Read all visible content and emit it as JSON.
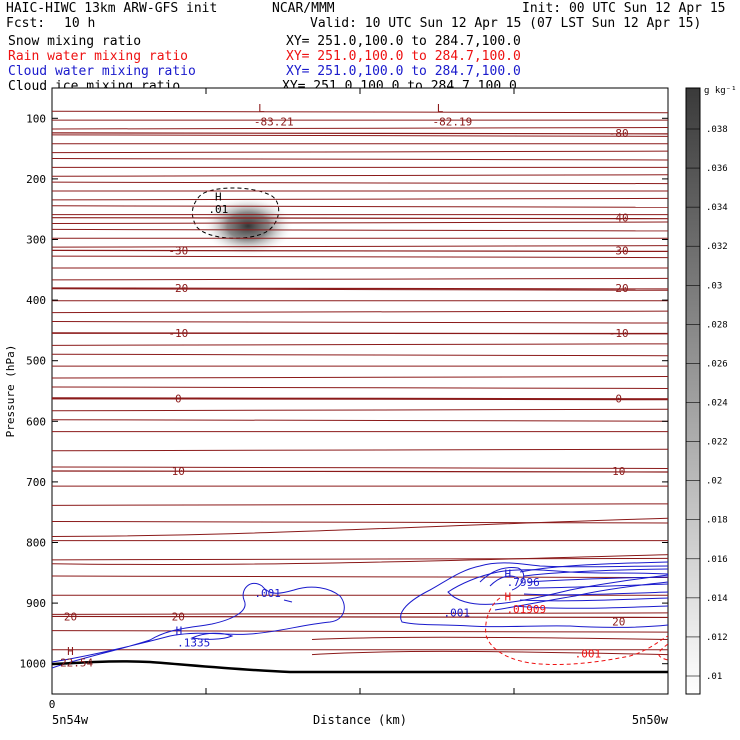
{
  "header": {
    "model": "HAIC-HIWC 13km ARW-GFS init",
    "org": "NCAR/MMM",
    "init": "Init: 00 UTC Sun 12 Apr 15",
    "fcst_label": "Fcst:",
    "fcst_value": "10 h",
    "valid": "Valid: 10 UTC Sun 12 Apr 15 (07 LST Sun 12 Apr 15)"
  },
  "fields": [
    {
      "name": "Snow mixing ratio",
      "xy": "XY= 251.0,100.0 to 284.7,100.0",
      "color": "#000000"
    },
    {
      "name": "Rain water mixing ratio",
      "xy": "XY= 251.0,100.0 to 284.7,100.0",
      "color": "#ee1111"
    },
    {
      "name": "Cloud water mixing ratio",
      "xy": "XY= 251.0,100.0 to 284.7,100.0",
      "color": "#1a1acc"
    },
    {
      "name": "Cloud ice mixing ratio",
      "xy": "XY= 251.0,100.0 to 284.7,100.0",
      "color": "#000000"
    }
  ],
  "chart_data": {
    "type": "contour",
    "xlabel": "Distance (km)",
    "ylabel": "Pressure (hPa)",
    "x_tick_start": "0",
    "x_left_label": "5n54w",
    "x_right_label": "5n50w",
    "y_ticks": [
      100,
      200,
      300,
      400,
      500,
      600,
      700,
      800,
      900,
      1000
    ],
    "ylim": [
      1050,
      50
    ],
    "temperature_contours": {
      "color": "#8b1a1a",
      "levels": [
        {
          "t": -80,
          "p": 124
        },
        {
          "t": -40,
          "p": 264
        },
        {
          "t": -30,
          "p": 318
        },
        {
          "t": -20,
          "p": 380
        },
        {
          "t": -10,
          "p": 454
        },
        {
          "t": 0,
          "p": 562
        },
        {
          "t": 10,
          "p": 682
        },
        {
          "t": 20,
          "p": 922
        }
      ],
      "labels_left": [
        {
          "text": "-30",
          "p": 318
        },
        {
          "text": "-20",
          "p": 380
        },
        {
          "text": "-10",
          "p": 454
        },
        {
          "text": "0",
          "p": 562
        },
        {
          "text": "10",
          "p": 682
        },
        {
          "text": "20",
          "p": 922
        }
      ],
      "labels_right": [
        {
          "text": "-80",
          "p": 124
        },
        {
          "text": "-40",
          "p": 264
        },
        {
          "text": "-30",
          "p": 318
        },
        {
          "text": "-20",
          "p": 380
        },
        {
          "text": "-10",
          "p": 454
        },
        {
          "text": "0",
          "p": 562
        },
        {
          "text": "10",
          "p": 682
        },
        {
          "text": "20",
          "p": 930
        }
      ]
    },
    "annotations": [
      {
        "text": "L",
        "color": "#8b1a1a",
        "x": 0.34,
        "p": 90
      },
      {
        "text": "-83.21",
        "color": "#8b1a1a",
        "x": 0.36,
        "p": 112
      },
      {
        "text": "L",
        "color": "#8b1a1a",
        "x": 0.63,
        "p": 90
      },
      {
        "text": "-82.19",
        "color": "#8b1a1a",
        "x": 0.65,
        "p": 112
      },
      {
        "text": "H",
        "color": "#000000",
        "x": 0.27,
        "p": 236
      },
      {
        "text": ".01",
        "color": "#000000",
        "x": 0.27,
        "p": 256
      },
      {
        "text": ".001",
        "color": "#1a1acc",
        "x": 0.35,
        "p": 890
      },
      {
        "text": "H",
        "color": "#1a1acc",
        "x": 0.206,
        "p": 952
      },
      {
        "text": ".1335",
        "color": "#1a1acc",
        "x": 0.23,
        "p": 972
      },
      {
        "text": ".001",
        "color": "#1a1acc",
        "x": 0.657,
        "p": 922
      },
      {
        "text": "H",
        "color": "#1a1acc",
        "x": 0.74,
        "p": 858
      },
      {
        "text": ".7996",
        "color": "#1a1acc",
        "x": 0.765,
        "p": 872
      },
      {
        "text": "H",
        "color": "#ee1111",
        "x": 0.74,
        "p": 896
      },
      {
        "text": ".01909",
        "color": "#ee1111",
        "x": 0.77,
        "p": 916
      },
      {
        "text": ".001",
        "color": "#ee1111",
        "x": 0.87,
        "p": 990
      },
      {
        "text": "H",
        "color": "#8b1a1a",
        "x": 0.03,
        "p": 986
      },
      {
        "text": "22.54",
        "color": "#8b1a1a",
        "x": 0.04,
        "p": 1005
      }
    ],
    "shading": {
      "unit": "g kg⁻¹",
      "colorbar_ticks": [
        ".01",
        ".012",
        ".014",
        ".016",
        ".018",
        ".02",
        ".022",
        ".024",
        ".026",
        ".028",
        ".03",
        ".032",
        ".034",
        ".036",
        ".038"
      ]
    }
  }
}
